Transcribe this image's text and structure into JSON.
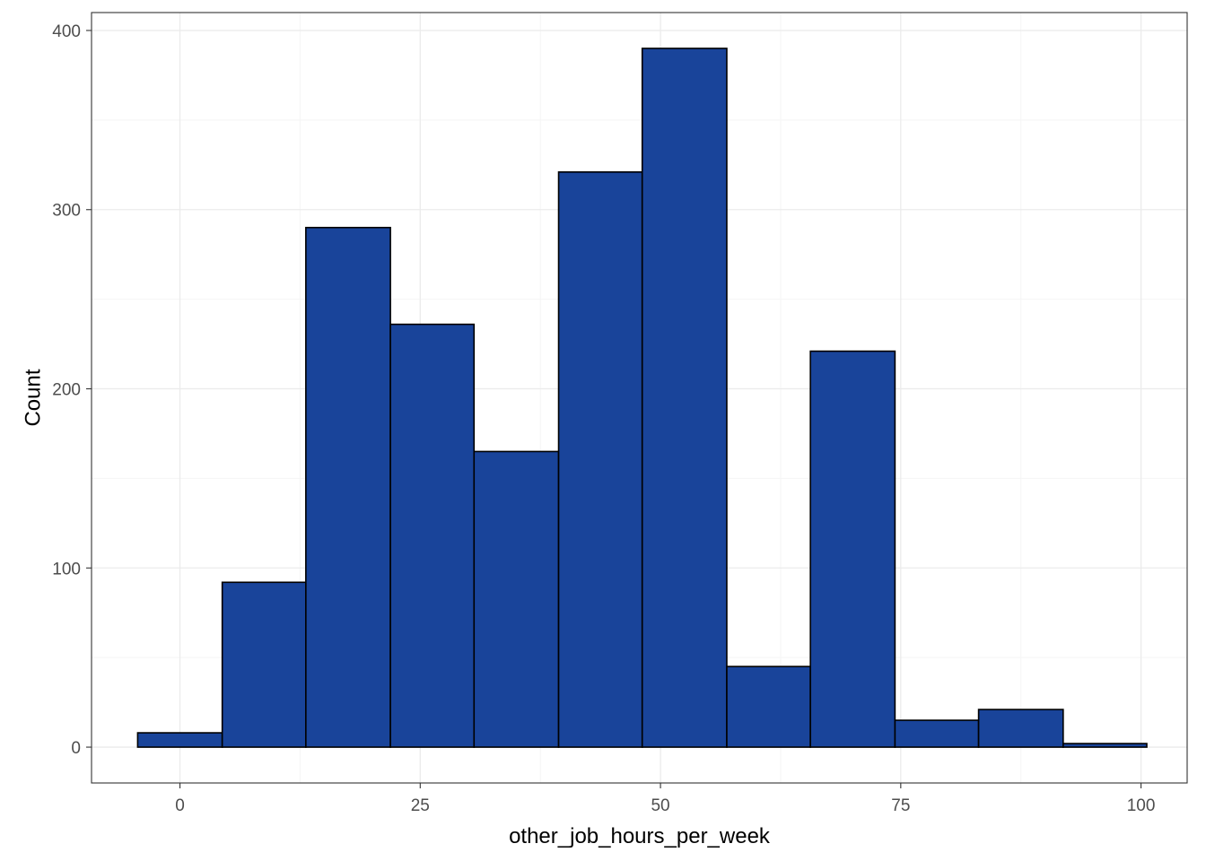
{
  "chart_data": {
    "type": "bar",
    "subtype": "histogram",
    "title": "",
    "xlabel": "other_job_hours_per_week",
    "ylabel": "Count",
    "xlim": [
      -9.2,
      104.8
    ],
    "ylim": [
      -20,
      410
    ],
    "x_ticks": [
      0,
      25,
      50,
      75,
      100
    ],
    "x_tick_labels": [
      "0",
      "25",
      "50",
      "75",
      "100"
    ],
    "y_ticks": [
      0,
      100,
      200,
      300,
      400
    ],
    "y_tick_labels": [
      "0",
      "100",
      "200",
      "300",
      "400"
    ],
    "x_minor_grid": [
      12.5,
      37.5,
      62.5,
      87.5
    ],
    "y_minor_grid": [
      50,
      150,
      250,
      350
    ],
    "bins": [
      {
        "x0": -4.4,
        "x1": 4.4,
        "count": 8
      },
      {
        "x0": 4.4,
        "x1": 13.1,
        "count": 92
      },
      {
        "x0": 13.1,
        "x1": 21.9,
        "count": 290
      },
      {
        "x0": 21.9,
        "x1": 30.6,
        "count": 236
      },
      {
        "x0": 30.6,
        "x1": 39.4,
        "count": 165
      },
      {
        "x0": 39.4,
        "x1": 48.1,
        "count": 321
      },
      {
        "x0": 48.1,
        "x1": 56.9,
        "count": 390
      },
      {
        "x0": 56.9,
        "x1": 65.6,
        "count": 45
      },
      {
        "x0": 65.6,
        "x1": 74.4,
        "count": 221
      },
      {
        "x0": 74.4,
        "x1": 83.1,
        "count": 15
      },
      {
        "x0": 83.1,
        "x1": 91.9,
        "count": 21
      },
      {
        "x0": 91.9,
        "x1": 100.6,
        "count": 2
      }
    ],
    "grid": true,
    "theme": "bw",
    "colors": {
      "bar_fill": "#19449A",
      "bar_stroke": "#000000",
      "grid_major": "#ebebeb",
      "grid_minor": "#f5f5f5",
      "panel_border": "#333333",
      "tick_text": "#4d4d4d"
    }
  }
}
